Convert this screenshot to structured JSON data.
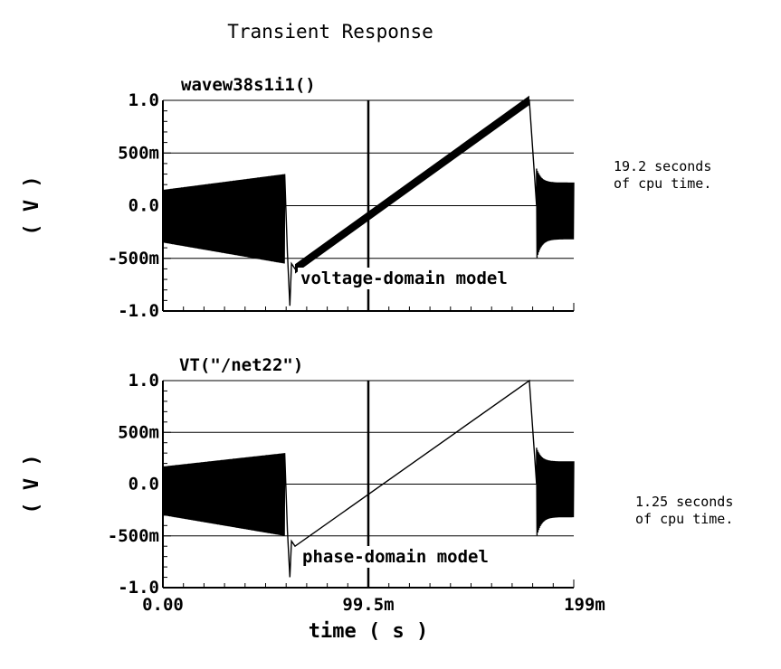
{
  "chart_data": {
    "title": "Transient Response",
    "xlabel": "time ( s )",
    "xlim": [
      0,
      0.199
    ],
    "x_tick_labels": [
      "0.00",
      "99.5m",
      "199m"
    ],
    "x_ticks": [
      0,
      0.0995,
      0.199
    ],
    "panels": [
      {
        "type": "line",
        "title": "wavew38s1i1()",
        "ylabel": "( V )",
        "ylim": [
          -1.0,
          1.0
        ],
        "y_tick_labels": [
          "1.0",
          "500m",
          "0.0",
          "-500m",
          "-1.0"
        ],
        "y_ticks": [
          1.0,
          0.5,
          0.0,
          -0.5,
          -1.0
        ],
        "grid": true,
        "annotation": "voltage-domain model",
        "side_note": [
          "19.2 seconds",
          "of cpu time."
        ],
        "series_style": "thick",
        "segments": [
          {
            "phase": "oscillation",
            "x_start": 0.0,
            "x_end": 0.059,
            "band_low_start": -0.35,
            "band_high_start": 0.15,
            "band_low_end": -0.55,
            "band_high_end": 0.3
          },
          {
            "phase": "dip",
            "x": 0.0615,
            "y_min": -0.95
          },
          {
            "phase": "ramp",
            "x": [
              0.064,
              0.1775
            ],
            "y": [
              -0.6,
              1.0
            ],
            "thickness_v": 0.09
          },
          {
            "phase": "settle",
            "x": [
              0.1775,
              0.181
            ],
            "y": [
              1.0,
              0.0
            ]
          },
          {
            "phase": "oscillation",
            "x_start": 0.181,
            "x_end": 0.199,
            "band_low": -0.32,
            "band_high": 0.22
          }
        ]
      },
      {
        "type": "line",
        "title": "VT(\"/net22\")",
        "ylabel": "( V )",
        "ylim": [
          -1.0,
          1.0
        ],
        "y_tick_labels": [
          "1.0",
          "500m",
          "0.0",
          "-500m",
          "-1.0"
        ],
        "y_ticks": [
          1.0,
          0.5,
          0.0,
          -0.5,
          -1.0
        ],
        "grid": true,
        "annotation": "phase-domain model",
        "side_note": [
          "1.25 seconds",
          "of cpu time."
        ],
        "series_style": "thin",
        "segments": [
          {
            "phase": "oscillation",
            "x_start": 0.0,
            "x_end": 0.059,
            "band_low_start": -0.3,
            "band_high_start": 0.17,
            "band_low_end": -0.5,
            "band_high_end": 0.3
          },
          {
            "phase": "dip",
            "x": 0.0615,
            "y_min": -0.9
          },
          {
            "phase": "ramp",
            "x": [
              0.064,
              0.1775
            ],
            "y": [
              -0.6,
              1.0
            ],
            "thickness_v": 0.0
          },
          {
            "phase": "settle",
            "x": [
              0.1775,
              0.181
            ],
            "y": [
              1.0,
              0.0
            ]
          },
          {
            "phase": "oscillation",
            "x_start": 0.181,
            "x_end": 0.199,
            "band_low": -0.32,
            "band_high": 0.22
          }
        ]
      }
    ]
  }
}
